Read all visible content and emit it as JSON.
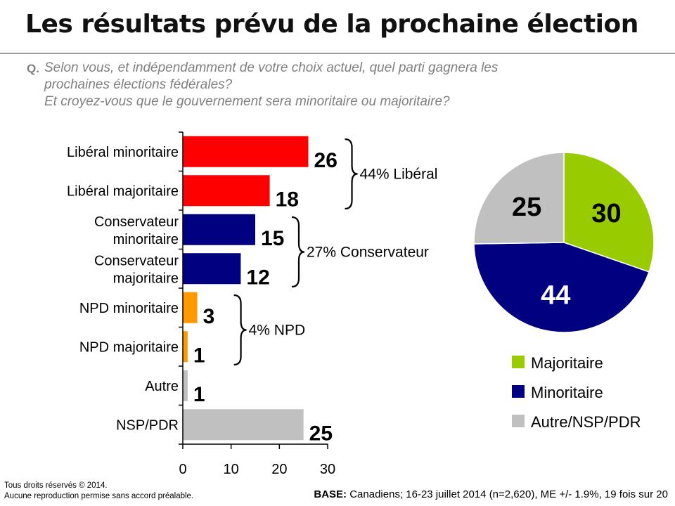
{
  "title": "Les résultats prévu de la prochaine élection",
  "question": {
    "label": "Q.",
    "lines": [
      "Selon vous, et indépendamment de votre choix actuel, quel parti gagnera les",
      "prochaines élections fédérales?",
      "Et croyez-vous que le gouvernement sera minoritaire ou majoritaire?"
    ]
  },
  "chart_data": [
    {
      "type": "bar",
      "orientation": "horizontal",
      "categories": [
        "Libéral minoritaire",
        "Libéral majoritaire",
        "Conservateur minoritaire",
        "Conservateur majoritaire",
        "NPD minoritaire",
        "NPD majoritaire",
        "Autre",
        "NSP/PDR"
      ],
      "values": [
        26,
        18,
        15,
        12,
        3,
        1,
        1,
        25
      ],
      "colors": [
        "#ff0000",
        "#ff0000",
        "#000080",
        "#000080",
        "#ff9900",
        "#ff9900",
        "#c0c0c0",
        "#c0c0c0"
      ],
      "xlim": [
        0,
        30
      ],
      "xticks": [
        0,
        10,
        20,
        30
      ],
      "groups": [
        {
          "label": "44% Libéral",
          "from": 0,
          "to": 1
        },
        {
          "label": "27% Conservateur",
          "from": 2,
          "to": 3
        },
        {
          "label": "4% NPD",
          "from": 4,
          "to": 5
        }
      ]
    },
    {
      "type": "pie",
      "slices": [
        {
          "name": "Majoritaire",
          "value": 30,
          "color": "#99cc00",
          "label_color": "#000000"
        },
        {
          "name": "Minoritaire",
          "value": 44,
          "color": "#000080",
          "label_color": "#ffffff"
        },
        {
          "name": "Autre/NSP/PDR",
          "value": 25,
          "color": "#c0c0c0",
          "label_color": "#000000"
        }
      ]
    }
  ],
  "footer": {
    "copyright_lines": [
      "Tous droits réservés © 2014.",
      "Aucune reproduction permise sans accord préalable."
    ],
    "base_label": "BASE:",
    "base_text": "Canadiens; 16-23 juillet 2014 (n=2,620), ME +/- 1.9%, 19 fois sur 20"
  }
}
